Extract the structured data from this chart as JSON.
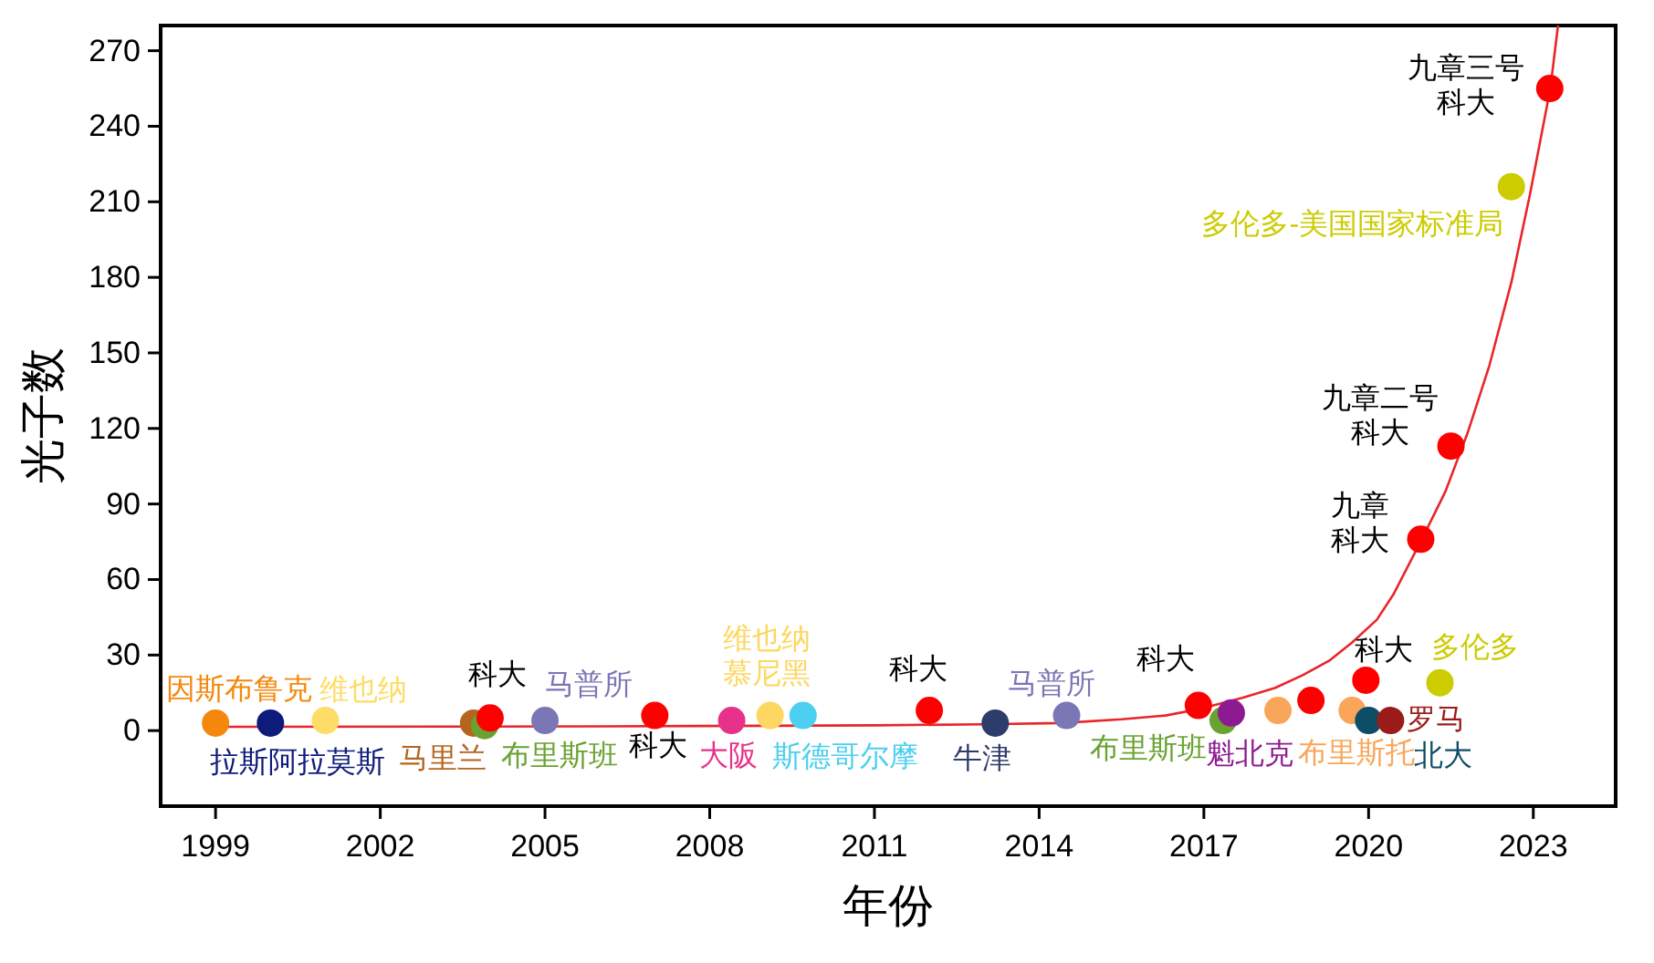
{
  "chart_data": {
    "type": "scatter",
    "xlabel": "年份",
    "ylabel": "光子数",
    "xlim": [
      1998,
      2024.5
    ],
    "ylim": [
      -30,
      280
    ],
    "xticks": [
      1999,
      2002,
      2005,
      2008,
      2011,
      2014,
      2017,
      2020,
      2023
    ],
    "yticks": [
      0,
      30,
      60,
      90,
      120,
      150,
      180,
      210,
      240,
      270
    ],
    "marker": "circle",
    "series": [
      {
        "type": "line",
        "marker": "none",
        "color": "#e8262a",
        "x": [
          1999,
          2003,
          2006,
          2009,
          2011,
          2013,
          2014.4,
          2015.5,
          2016.3,
          2016.9,
          2017.7,
          2018.3,
          2018.8,
          2019.3,
          2019.7,
          2020.15,
          2020.45,
          2020.97,
          2021.4,
          2021.8,
          2022.2,
          2022.6,
          2022.94,
          2023.31,
          2023.45
        ],
        "values": [
          1.5,
          1.6,
          1.7,
          1.9,
          2.1,
          2.5,
          3,
          4.5,
          6,
          8.5,
          13,
          17,
          22,
          28,
          35,
          44,
          54,
          76,
          95,
          118,
          145,
          178,
          213,
          255,
          280
        ]
      },
      {
        "name": "因斯布鲁克",
        "color": "#f5870c",
        "x": [
          1999
        ],
        "values": [
          3
        ]
      },
      {
        "name": "拉斯阿拉莫斯",
        "color": "#0d1b7a",
        "x": [
          2000
        ],
        "values": [
          3
        ]
      },
      {
        "name": "维也纳",
        "color": "#fedc68",
        "x": [
          2001
        ],
        "values": [
          4
        ]
      },
      {
        "name": "马里兰",
        "color": "#b5651d",
        "x": [
          2003.7
        ],
        "values": [
          3
        ]
      },
      {
        "name": "布里斯班",
        "color": "#6aa232",
        "x": [
          2003.9
        ],
        "values": [
          2
        ]
      },
      {
        "name": "科大",
        "color": "#ff0000",
        "x": [
          2004
        ],
        "values": [
          5
        ]
      },
      {
        "name": "马普所",
        "color": "#7b76b6",
        "x": [
          2005
        ],
        "values": [
          4
        ]
      },
      {
        "name": "科大",
        "color": "#ff0000",
        "x": [
          2007
        ],
        "values": [
          6
        ]
      },
      {
        "name": "大阪",
        "color": "#e8318a",
        "x": [
          2008.4
        ],
        "values": [
          4
        ]
      },
      {
        "name": "维也纳慕尼黑",
        "color": "#fdd762",
        "x": [
          2009.1
        ],
        "values": [
          6
        ]
      },
      {
        "name": "斯德哥尔摩",
        "color": "#4ccff0",
        "x": [
          2009.7
        ],
        "values": [
          6
        ]
      },
      {
        "name": "科大",
        "color": "#ff0000",
        "x": [
          2012
        ],
        "values": [
          8
        ]
      },
      {
        "name": "牛津",
        "color": "#2e3c6c",
        "x": [
          2013.2
        ],
        "values": [
          3
        ]
      },
      {
        "name": "马普所",
        "color": "#7b76b6",
        "x": [
          2014.5
        ],
        "values": [
          6
        ]
      },
      {
        "name": "科大",
        "color": "#ff0000",
        "x": [
          2016.9
        ],
        "values": [
          10
        ]
      },
      {
        "name": "布里斯班",
        "color": "#6aa232",
        "x": [
          2017.35
        ],
        "values": [
          4
        ]
      },
      {
        "name": "魁北克",
        "color": "#8e1a91",
        "x": [
          2017.5
        ],
        "values": [
          7
        ]
      },
      {
        "name": "布里斯托",
        "color": "#f9a65a",
        "x": [
          2018.35,
          2019.7
        ],
        "values": [
          8,
          8
        ]
      },
      {
        "color": "#ff0000",
        "x": [
          2018.95
        ],
        "values": [
          12
        ]
      },
      {
        "name": "科大",
        "color": "#ff0000",
        "x": [
          2019.95
        ],
        "values": [
          20
        ]
      },
      {
        "name": "北大",
        "color": "#0e4d66",
        "x": [
          2020
        ],
        "values": [
          4
        ]
      },
      {
        "name": "罗马",
        "color": "#9b1b1b",
        "x": [
          2020.4
        ],
        "values": [
          4
        ]
      },
      {
        "name": "多伦多",
        "color": "#cccc00",
        "x": [
          2021.3
        ],
        "values": [
          19
        ]
      },
      {
        "name": "九章科大",
        "color": "#ff0000",
        "x": [
          2020.95
        ],
        "values": [
          76
        ]
      },
      {
        "name": "九章二号科大",
        "color": "#ff0000",
        "x": [
          2021.5
        ],
        "values": [
          113
        ]
      },
      {
        "name": "多伦多-美国国家标准局",
        "color": "#cccc00",
        "x": [
          2022.6
        ],
        "values": [
          216
        ]
      },
      {
        "name": "九章三号科大",
        "color": "#ff0000",
        "x": [
          2023.3
        ],
        "values": [
          255
        ]
      }
    ]
  }
}
